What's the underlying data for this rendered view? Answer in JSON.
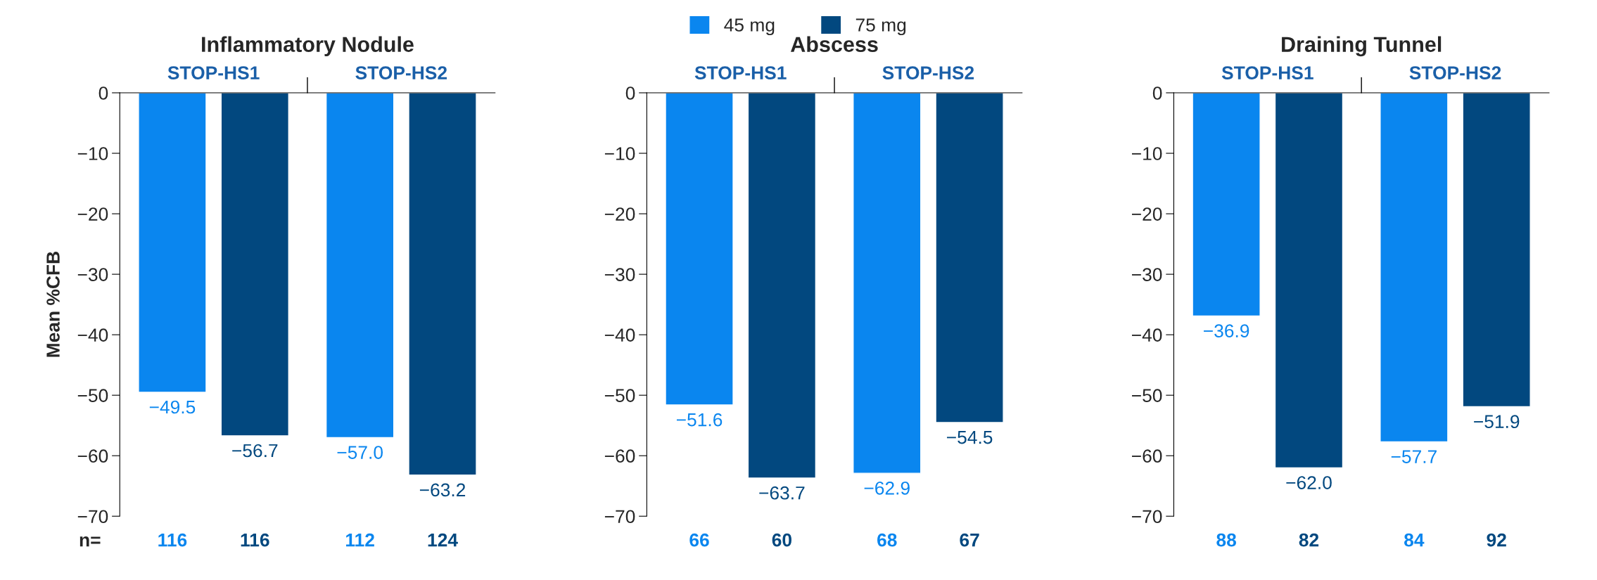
{
  "chart_data": [
    {
      "type": "bar",
      "title": "Inflammatory Nodule",
      "ylabel": "Mean %CFB",
      "legend": "top",
      "categories": [
        "STOP-HS1",
        "STOP-HS2"
      ],
      "series": [
        {
          "name": "45 mg",
          "color": "#0a86ef",
          "values": [
            -49.5,
            -57.0
          ],
          "value_labels": [
            "−49.5",
            "−57.0"
          ]
        },
        {
          "name": "75 mg",
          "color": "#02487f",
          "values": [
            -56.7,
            -63.2
          ],
          "value_labels": [
            "−56.7",
            "−63.2"
          ]
        }
      ],
      "ylim": [
        -70,
        0
      ],
      "yticks": [
        0,
        {
          "value": -10,
          "label": "−10"
        },
        {
          "value": -20,
          "label": "−20"
        },
        {
          "value": -30,
          "label": "−30"
        },
        {
          "value": -40,
          "label": "−40"
        },
        {
          "value": -50,
          "label": "−50"
        },
        {
          "value": -60,
          "label": "−60"
        },
        {
          "value": -70,
          "label": "−70"
        }
      ],
      "annotations": [
        "n=",
        "116",
        "116",
        "112",
        "124"
      ]
    },
    {
      "type": "bar",
      "title": "Abscess",
      "categories": [
        "STOP-HS1",
        "STOP-HS2"
      ],
      "series": [
        {
          "color": "#0a86ef",
          "values": [
            -51.6,
            -62.9
          ],
          "value_labels": [
            "−51.6",
            "−62.9"
          ]
        },
        {
          "color": "#02487f",
          "values": [
            -63.7,
            -54.5
          ],
          "value_labels": [
            "−63.7",
            "−54.5"
          ]
        }
      ],
      "ylim": [
        -70,
        0
      ],
      "yticks": [
        0,
        {
          "value": -10,
          "label": "−10"
        },
        {
          "value": -20,
          "label": "−20"
        },
        {
          "value": -30,
          "label": "−30"
        },
        {
          "value": -40,
          "label": "−40"
        },
        {
          "value": -50,
          "label": "−50"
        },
        {
          "value": -60,
          "label": "−60"
        },
        {
          "value": -70,
          "label": "−70"
        }
      ],
      "annotations": [
        "66",
        "60",
        "68",
        "67"
      ]
    },
    {
      "type": "bar",
      "title": "Draining Tunnel",
      "categories": [
        "STOP-HS1",
        "STOP-HS2"
      ],
      "series": [
        {
          "color": "#0a86ef",
          "values": [
            -36.9,
            -57.7
          ],
          "value_labels": [
            "−36.9",
            "−57.7"
          ]
        },
        {
          "color": "#02487f",
          "values": [
            -62.0,
            -51.9
          ],
          "value_labels": [
            "−62.0",
            "−51.9"
          ]
        }
      ],
      "ylim": [
        -70,
        0
      ],
      "yticks": [
        0,
        {
          "value": -10,
          "label": "−10"
        },
        {
          "value": -20,
          "label": "−20"
        },
        {
          "value": -30,
          "label": "−30"
        },
        {
          "value": -40,
          "label": "−40"
        },
        {
          "value": -50,
          "label": "−50"
        },
        {
          "value": -60,
          "label": "−60"
        },
        {
          "value": -70,
          "label": "−70"
        }
      ],
      "annotations": [
        "88",
        "82",
        "84",
        "92"
      ]
    }
  ]
}
